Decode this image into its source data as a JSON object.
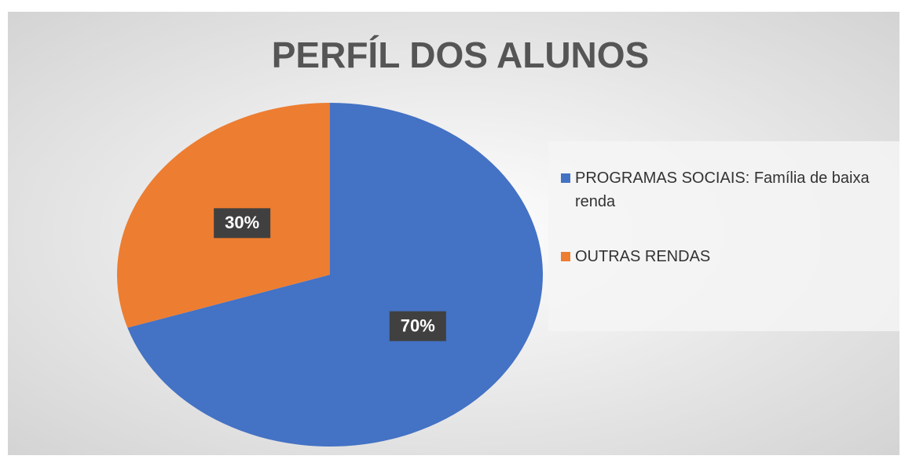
{
  "chart_data": {
    "type": "pie",
    "title": "PERFÍL DOS ALUNOS",
    "categories": [
      "PROGRAMAS SOCIAIS: Família de baixa renda",
      "OUTRAS RENDAS"
    ],
    "values": [
      70,
      30
    ],
    "value_labels": [
      "70%",
      "30%"
    ],
    "colors": [
      "#4472c4",
      "#ed7d31"
    ],
    "legend": "right"
  }
}
